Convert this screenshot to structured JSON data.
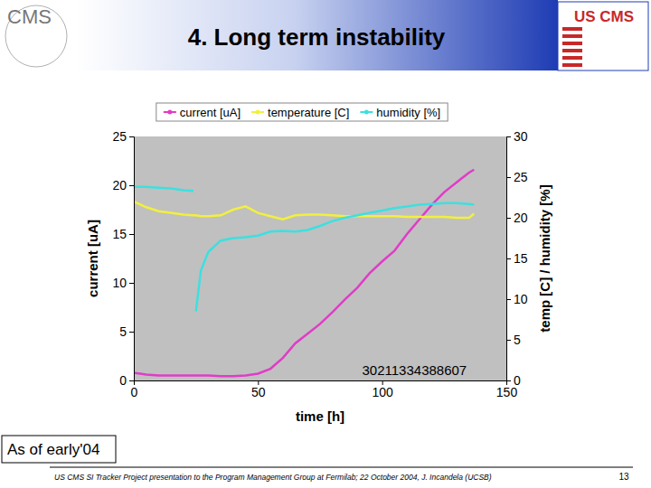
{
  "slide": {
    "title": "4. Long term instability",
    "logo_left": "CMS",
    "logo_right": "US CMS",
    "note": "As of early'04",
    "footer": "US CMS SI Tracker Project presentation to the Program Management Group at Fermilab;  22 October 2004, J. Incandela (UCSB)",
    "page": "13"
  },
  "chart_data": {
    "type": "line",
    "x_label": "time  [h]",
    "y_label": "current  [uA]",
    "y2_label": "temp  [C]  /  humidity  [%]",
    "x": [
      0,
      5,
      10,
      15,
      20,
      24,
      24.5,
      25,
      27,
      30,
      35,
      40,
      45,
      50,
      55,
      60,
      65,
      70,
      75,
      80,
      85,
      90,
      95,
      100,
      105,
      110,
      115,
      120,
      125,
      130,
      135,
      137
    ],
    "series": [
      {
        "name": "current [uA]",
        "color": "#e03cc8",
        "values": [
          0.8,
          0.6,
          0.5,
          0.5,
          0.5,
          0.5,
          0.5,
          0.5,
          0.5,
          0.5,
          0.45,
          0.45,
          0.5,
          0.7,
          1.2,
          2.3,
          3.8,
          4.8,
          5.8,
          7,
          8.3,
          9.5,
          11,
          12.2,
          13.3,
          15,
          16.5,
          18,
          19.3,
          20.3,
          21.3,
          21.6
        ]
      },
      {
        "name": "temperature [C]",
        "color": "#f2f03c",
        "axis": "y2",
        "values": [
          22,
          21.3,
          20.8,
          20.6,
          20.4,
          20.3,
          20.3,
          20.3,
          20.2,
          20.2,
          20.3,
          21,
          21.4,
          20.6,
          20.2,
          19.8,
          20.3,
          20.4,
          20.4,
          20.3,
          20.2,
          20.2,
          20.2,
          20.2,
          20.2,
          20.1,
          20.1,
          20.1,
          20.1,
          20.0,
          20.0,
          20.5
        ]
      },
      {
        "name": "humidity [%]",
        "color": "#3ce0e0",
        "axis": "y2",
        "values": [
          23.8,
          23.8,
          23.7,
          23.6,
          23.4,
          23.3,
          null,
          8.5,
          13.5,
          15.8,
          17.2,
          17.5,
          17.6,
          17.8,
          18.3,
          18.4,
          18.3,
          18.5,
          19,
          19.6,
          20,
          20.3,
          20.6,
          20.9,
          21.2,
          21.4,
          21.6,
          21.7,
          21.8,
          21.8,
          21.7,
          21.6
        ]
      }
    ],
    "xlim": [
      0,
      150
    ],
    "xticks": [
      0,
      50,
      100,
      150
    ],
    "ylim": [
      0,
      25
    ],
    "yticks": [
      0,
      5,
      10,
      15,
      20,
      25
    ],
    "y2lim": [
      0,
      30
    ],
    "y2ticks": [
      0,
      5,
      10,
      15,
      20,
      25,
      30
    ],
    "grid": false,
    "legend": "top",
    "annotations": [
      {
        "text": "30211334388607",
        "x": 113,
        "y": 0.6
      }
    ]
  }
}
